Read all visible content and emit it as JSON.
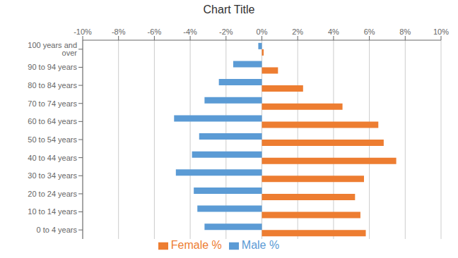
{
  "chart_data": {
    "type": "bar",
    "orientation": "horizontal",
    "title": "Chart Title",
    "categories": [
      "0 to 4 years",
      "10 to 14 years",
      "20 to 24 years",
      "30 to 34 years",
      "40 to 44 years",
      "50 to 54 years",
      "60 to 64 years",
      "70 to 74 years",
      "80 to 84 years",
      "90 to 94 years",
      "100 years and over"
    ],
    "series": [
      {
        "name": "Male %",
        "color": "#5B9BD5",
        "values": [
          -3.2,
          -3.6,
          -3.8,
          -4.8,
          -3.9,
          -3.5,
          -4.9,
          -3.2,
          -2.4,
          -1.6,
          -0.2
        ]
      },
      {
        "name": "Female %",
        "color": "#ED7D31",
        "values": [
          5.8,
          5.5,
          5.2,
          5.7,
          7.5,
          6.8,
          6.5,
          4.5,
          2.3,
          0.9,
          0.1
        ]
      }
    ],
    "xlim": [
      -10,
      10
    ],
    "xticks": [
      {
        "value": -10,
        "label": "-10%"
      },
      {
        "value": -8,
        "label": "-8%"
      },
      {
        "value": -6,
        "label": "-6%"
      },
      {
        "value": -4,
        "label": "-4%"
      },
      {
        "value": -2,
        "label": "-2%"
      },
      {
        "value": 0,
        "label": "0%"
      },
      {
        "value": 2,
        "label": "2%"
      },
      {
        "value": 4,
        "label": "4%"
      },
      {
        "value": 6,
        "label": "6%"
      },
      {
        "value": 8,
        "label": "8%"
      },
      {
        "value": 10,
        "label": "10%"
      }
    ],
    "grid": true,
    "legend": "bottom"
  }
}
